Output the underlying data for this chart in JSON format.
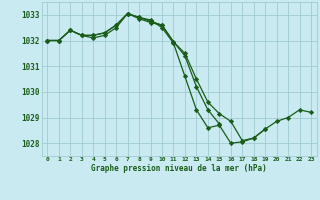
{
  "title": "Graphe pression niveau de la mer (hPa)",
  "bg_color": "#c8eaf0",
  "grid_color": "#a0ccd0",
  "line_color": "#1a5c1a",
  "x_labels": [
    "0",
    "1",
    "2",
    "3",
    "4",
    "5",
    "6",
    "7",
    "8",
    "9",
    "10",
    "11",
    "12",
    "13",
    "14",
    "15",
    "16",
    "17",
    "18",
    "19",
    "20",
    "21",
    "22",
    "23"
  ],
  "ylim": [
    1027.5,
    1033.5
  ],
  "yticks": [
    1028,
    1029,
    1030,
    1031,
    1032,
    1033
  ],
  "series": [
    {
      "x": [
        0,
        1,
        2,
        3,
        4,
        5,
        6,
        7,
        8,
        9,
        10,
        11,
        12,
        13,
        14,
        15
      ],
      "y": [
        1032.0,
        1032.0,
        1032.4,
        1032.2,
        1032.1,
        1032.2,
        1032.5,
        1033.05,
        1032.85,
        1032.7,
        1032.6,
        1031.95,
        1031.4,
        1030.2,
        1029.3,
        1028.75
      ]
    },
    {
      "x": [
        0,
        1,
        2,
        3,
        4,
        5,
        6,
        7,
        8,
        9,
        10,
        11,
        12,
        13,
        14,
        15,
        16,
        17,
        18,
        19
      ],
      "y": [
        1032.0,
        1032.0,
        1032.4,
        1032.2,
        1032.2,
        1032.3,
        1032.6,
        1033.05,
        1032.9,
        1032.8,
        1032.5,
        1031.9,
        1030.6,
        1029.3,
        1028.6,
        1028.7,
        1028.0,
        1028.05,
        1028.2,
        1028.55
      ]
    },
    {
      "x": [
        0,
        1,
        2,
        3,
        4,
        5,
        6,
        7,
        8,
        9,
        10,
        11,
        12,
        13,
        14,
        15,
        16,
        17,
        18,
        19,
        20,
        21,
        22,
        23
      ],
      "y": [
        1032.0,
        1032.0,
        1032.4,
        1032.2,
        1032.2,
        1032.3,
        1032.6,
        1033.05,
        1032.9,
        1032.75,
        1032.6,
        1031.95,
        1031.5,
        1030.5,
        1029.6,
        1029.15,
        1028.85,
        1028.1,
        1028.2,
        1028.55,
        1028.85,
        1029.0,
        1029.3,
        1029.2
      ]
    }
  ]
}
